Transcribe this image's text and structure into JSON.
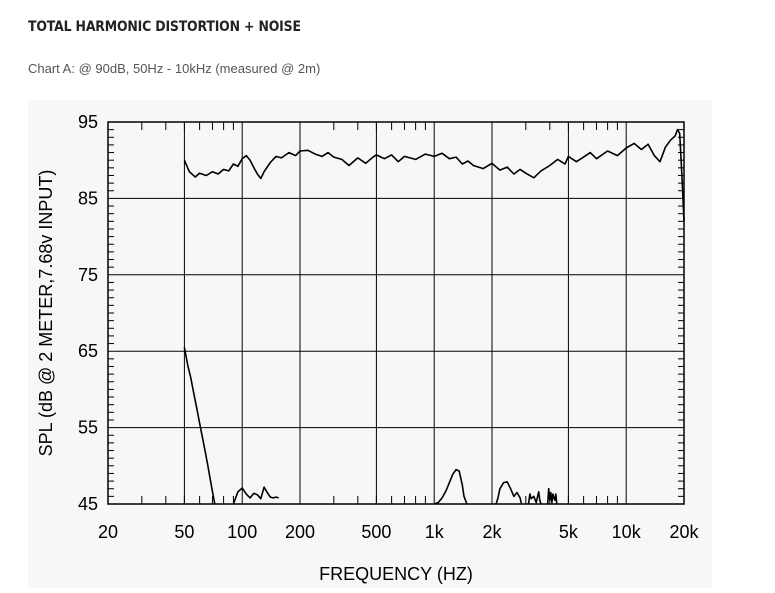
{
  "section_title": "TOTAL HARMONIC DISTORTION + NOISE",
  "caption": "Chart A: @ 90dB, 50Hz - 10kHz (measured @ 2m)",
  "chart_data": {
    "type": "line",
    "title": "",
    "xlabel": "FREQUENCY  (HZ)",
    "ylabel": "SPL (dB @ 2 METER,7.68v  INPUT)",
    "x_scale": "log",
    "xlim": [
      20,
      20000
    ],
    "ylim": [
      45,
      95
    ],
    "x_ticks": [
      20,
      50,
      100,
      200,
      500,
      1000,
      2000,
      5000,
      10000,
      20000
    ],
    "x_tick_labels": [
      "20",
      "50",
      "100",
      "200",
      "500",
      "1k",
      "2k",
      "5k",
      "10k",
      "20k"
    ],
    "y_ticks": [
      45,
      55,
      65,
      75,
      85,
      95
    ],
    "y_tick_labels": [
      "45",
      "55",
      "65",
      "75",
      "85",
      "95"
    ],
    "grid": true,
    "line_color": "#000000",
    "series": [
      {
        "x": [
          50,
          53,
          57,
          60,
          65,
          70,
          75,
          80,
          85,
          90,
          95,
          100,
          105,
          110,
          115,
          120,
          125,
          130,
          140,
          150,
          160,
          175,
          190,
          200,
          220,
          240,
          260,
          280,
          300,
          330,
          360,
          400,
          440,
          480,
          500,
          550,
          600,
          650,
          700,
          800,
          900,
          1000,
          1100,
          1200,
          1300,
          1400,
          1500,
          1600,
          1800,
          2000,
          2200,
          2400,
          2600,
          2800,
          3000,
          3300,
          3600,
          4000,
          4400,
          4800,
          5000,
          5500,
          6000,
          6500,
          7000,
          8000,
          9000,
          10000,
          11000,
          12000,
          13000,
          14000,
          15000,
          16000,
          17000,
          18000,
          18500,
          19000,
          19500,
          20000
        ],
        "y": [
          90,
          88.5,
          87.8,
          88.3,
          88,
          88.5,
          88.2,
          88.8,
          88.6,
          89.5,
          89.2,
          90.2,
          90.6,
          90,
          89,
          88.2,
          87.6,
          88.5,
          89.7,
          90.5,
          90.3,
          91,
          90.6,
          91.2,
          91.3,
          90.8,
          90.5,
          91,
          90.4,
          90.1,
          89.3,
          90.3,
          89.6,
          90.4,
          90.7,
          90.2,
          90.7,
          89.8,
          90.5,
          90.1,
          90.8,
          90.5,
          90.9,
          90.2,
          90.4,
          89.5,
          89.9,
          89.3,
          88.9,
          89.6,
          88.7,
          89.1,
          88.2,
          88.8,
          88.3,
          87.7,
          88.6,
          89.3,
          90.1,
          89.5,
          90.5,
          89.8,
          90.4,
          91,
          90.2,
          91.2,
          90.6,
          91.6,
          92.2,
          91.4,
          92.1,
          90.6,
          89.8,
          91.7,
          92.6,
          93.2,
          94,
          93.5,
          88,
          82
        ]
      },
      {
        "x": [
          50,
          52,
          54,
          56,
          58,
          60,
          62,
          64,
          66,
          68,
          70,
          72
        ],
        "y": [
          65.5,
          63.2,
          61.5,
          59.4,
          57.5,
          55.6,
          53.8,
          52,
          50.2,
          48.4,
          46.6,
          45
        ]
      },
      {
        "x": [
          90,
          95,
          100,
          105,
          110,
          115,
          120,
          125,
          130,
          135,
          140,
          145,
          150,
          155
        ],
        "y": [
          45,
          46.6,
          47.1,
          46.3,
          45.8,
          46.4,
          46.2,
          45.7,
          47.2,
          46.5,
          45.9,
          45.8,
          45.9,
          45.8
        ]
      },
      {
        "x": [
          1000,
          1050,
          1100,
          1150,
          1200,
          1250,
          1300,
          1350,
          1400,
          1430,
          1480
        ],
        "y": [
          45,
          45.2,
          45.8,
          46.7,
          47.8,
          48.9,
          49.5,
          49.3,
          47.5,
          46,
          45
        ]
      },
      {
        "x": [
          2100,
          2150,
          2200,
          2300,
          2400,
          2500,
          2600,
          2700,
          2800,
          2850
        ],
        "y": [
          45,
          45.8,
          47,
          47.8,
          47.9,
          47,
          46,
          46.5,
          45.8,
          45
        ]
      },
      {
        "x": [
          3100,
          3150,
          3200,
          3300,
          3400,
          3500,
          3550,
          3600
        ],
        "y": [
          45,
          46.3,
          45.7,
          46,
          45.2,
          46.6,
          45.5,
          45
        ]
      },
      {
        "x": [
          3900,
          3950,
          4000,
          4050,
          4100,
          4150,
          4200,
          4250,
          4300,
          4350
        ],
        "y": [
          45,
          47,
          45.5,
          46.5,
          45.2,
          46.3,
          45.8,
          45.5,
          46.3,
          45
        ]
      }
    ]
  }
}
